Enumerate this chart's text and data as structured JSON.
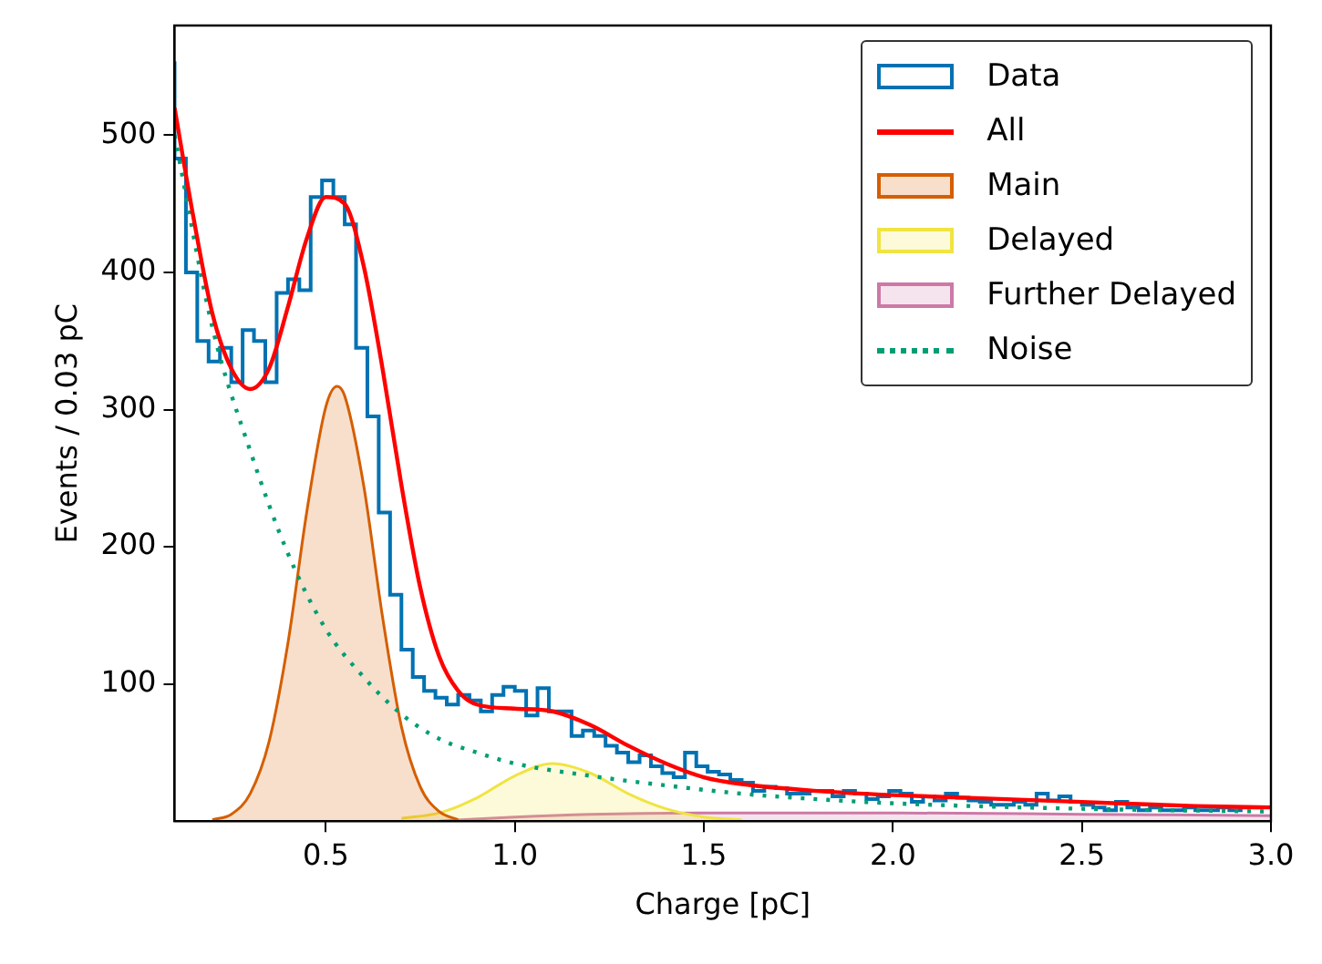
{
  "chart_data": {
    "type": "step",
    "xlabel": "Charge [pC]",
    "ylabel": "Events / 0.03 pC",
    "xlim": [
      0.1,
      3.0
    ],
    "xticks": [
      0.5,
      {
        "value": 1,
        "label": "1.0"
      },
      1.5,
      {
        "value": 2,
        "label": "2.0"
      },
      2.5,
      {
        "value": 3,
        "label": "3.0"
      }
    ],
    "ylim": [
      0,
      580
    ],
    "yticks": [
      100,
      200,
      300,
      400,
      500
    ],
    "grid": false,
    "legend": "top right",
    "marker": "none",
    "series": [
      {
        "name": "Data",
        "color": "#0072b2",
        "x": [
          0.1,
          0.13,
          0.16,
          0.19,
          0.22,
          0.25,
          0.28,
          0.31,
          0.34,
          0.37,
          0.4,
          0.43,
          0.46,
          0.49,
          0.52,
          0.55,
          0.58,
          0.61,
          0.64,
          0.67,
          0.7,
          0.73,
          0.76,
          0.79,
          0.82,
          0.85,
          0.88,
          0.91,
          0.94,
          0.97,
          1.0,
          1.03,
          1.06,
          1.09,
          1.12,
          1.15,
          1.18,
          1.21,
          1.24,
          1.27,
          1.3,
          1.33,
          1.36,
          1.39,
          1.42,
          1.45,
          1.48,
          1.51,
          1.54,
          1.57,
          1.6,
          1.63,
          1.66,
          1.69,
          1.72,
          1.75,
          1.78,
          1.81,
          1.84,
          1.87,
          1.9,
          1.93,
          1.96,
          1.99,
          2.02,
          2.05,
          2.08,
          2.11,
          2.14,
          2.17,
          2.2,
          2.23,
          2.26,
          2.29,
          2.32,
          2.35,
          2.38,
          2.41,
          2.44,
          2.47,
          2.5,
          2.53,
          2.56,
          2.59,
          2.62,
          2.65,
          2.68,
          2.71,
          2.74,
          2.77,
          2.8,
          2.83,
          2.86,
          2.89,
          2.92,
          2.95,
          2.98
        ],
        "values": [
          554,
          483,
          400,
          350,
          335,
          345,
          320,
          358,
          350,
          320,
          385,
          395,
          387,
          455,
          467,
          455,
          435,
          345,
          295,
          225,
          165,
          125,
          105,
          95,
          90,
          85,
          92,
          88,
          80,
          92,
          98,
          95,
          77,
          97,
          80,
          80,
          62,
          66,
          62,
          55,
          50,
          43,
          48,
          40,
          35,
          32,
          50,
          40,
          36,
          34,
          30,
          28,
          22,
          25,
          24,
          20,
          20,
          22,
          22,
          18,
          22,
          20,
          16,
          18,
          22,
          20,
          14,
          18,
          15,
          20,
          17,
          15,
          14,
          12,
          12,
          14,
          12,
          20,
          15,
          18,
          14,
          12,
          10,
          8,
          14,
          10,
          8,
          10,
          8,
          8,
          10,
          8,
          8,
          10,
          8,
          10,
          10
        ]
      },
      {
        "name": "All",
        "type": "line",
        "color": "#ff0000",
        "x": [
          0.1,
          0.15,
          0.2,
          0.25,
          0.3,
          0.35,
          0.4,
          0.45,
          0.5,
          0.55,
          0.6,
          0.65,
          0.7,
          0.75,
          0.8,
          0.85,
          0.9,
          1.0,
          1.1,
          1.2,
          1.3,
          1.4,
          1.5,
          1.6,
          1.8,
          2.0,
          2.2,
          2.5,
          2.8,
          3.0
        ],
        "values": [
          520,
          440,
          370,
          330,
          315,
          330,
          375,
          425,
          455,
          450,
          405,
          330,
          245,
          170,
          120,
          95,
          85,
          82,
          80,
          70,
          55,
          42,
          32,
          27,
          22,
          19,
          17,
          14,
          11,
          10
        ]
      },
      {
        "name": "Main",
        "type": "area",
        "color": "#d55e00",
        "x": [
          0.2,
          0.25,
          0.3,
          0.35,
          0.4,
          0.45,
          0.5,
          0.53,
          0.55,
          0.6,
          0.65,
          0.7,
          0.75,
          0.8,
          0.85
        ],
        "values": [
          1,
          5,
          20,
          58,
          130,
          226,
          302,
          317,
          310,
          245,
          149,
          69,
          25,
          7,
          1
        ]
      },
      {
        "name": "Delayed",
        "type": "area",
        "color": "#f0e442",
        "x": [
          0.7,
          0.8,
          0.9,
          1.0,
          1.1,
          1.2,
          1.3,
          1.4,
          1.5,
          1.6
        ],
        "values": [
          2,
          6,
          17,
          33,
          42,
          35,
          20,
          9,
          3,
          1
        ]
      },
      {
        "name": "Further Delayed",
        "type": "area",
        "color": "#cc79a7",
        "x": [
          0.8,
          1.0,
          1.2,
          1.5,
          2.0,
          2.5,
          3.0
        ],
        "values": [
          0,
          3,
          5,
          6,
          6,
          5,
          4
        ]
      },
      {
        "name": "Noise",
        "type": "line",
        "line_style": "dotted",
        "color": "#009e73",
        "x": [
          0.1,
          0.2,
          0.3,
          0.4,
          0.5,
          0.6,
          0.7,
          0.8,
          0.9,
          1.0,
          1.2,
          1.4,
          1.6,
          1.8,
          2.0,
          2.5,
          3.0
        ],
        "values": [
          500,
          360,
          270,
          195,
          140,
          105,
          78,
          60,
          50,
          42,
          33,
          26,
          20,
          16,
          13,
          9,
          7
        ]
      }
    ]
  }
}
